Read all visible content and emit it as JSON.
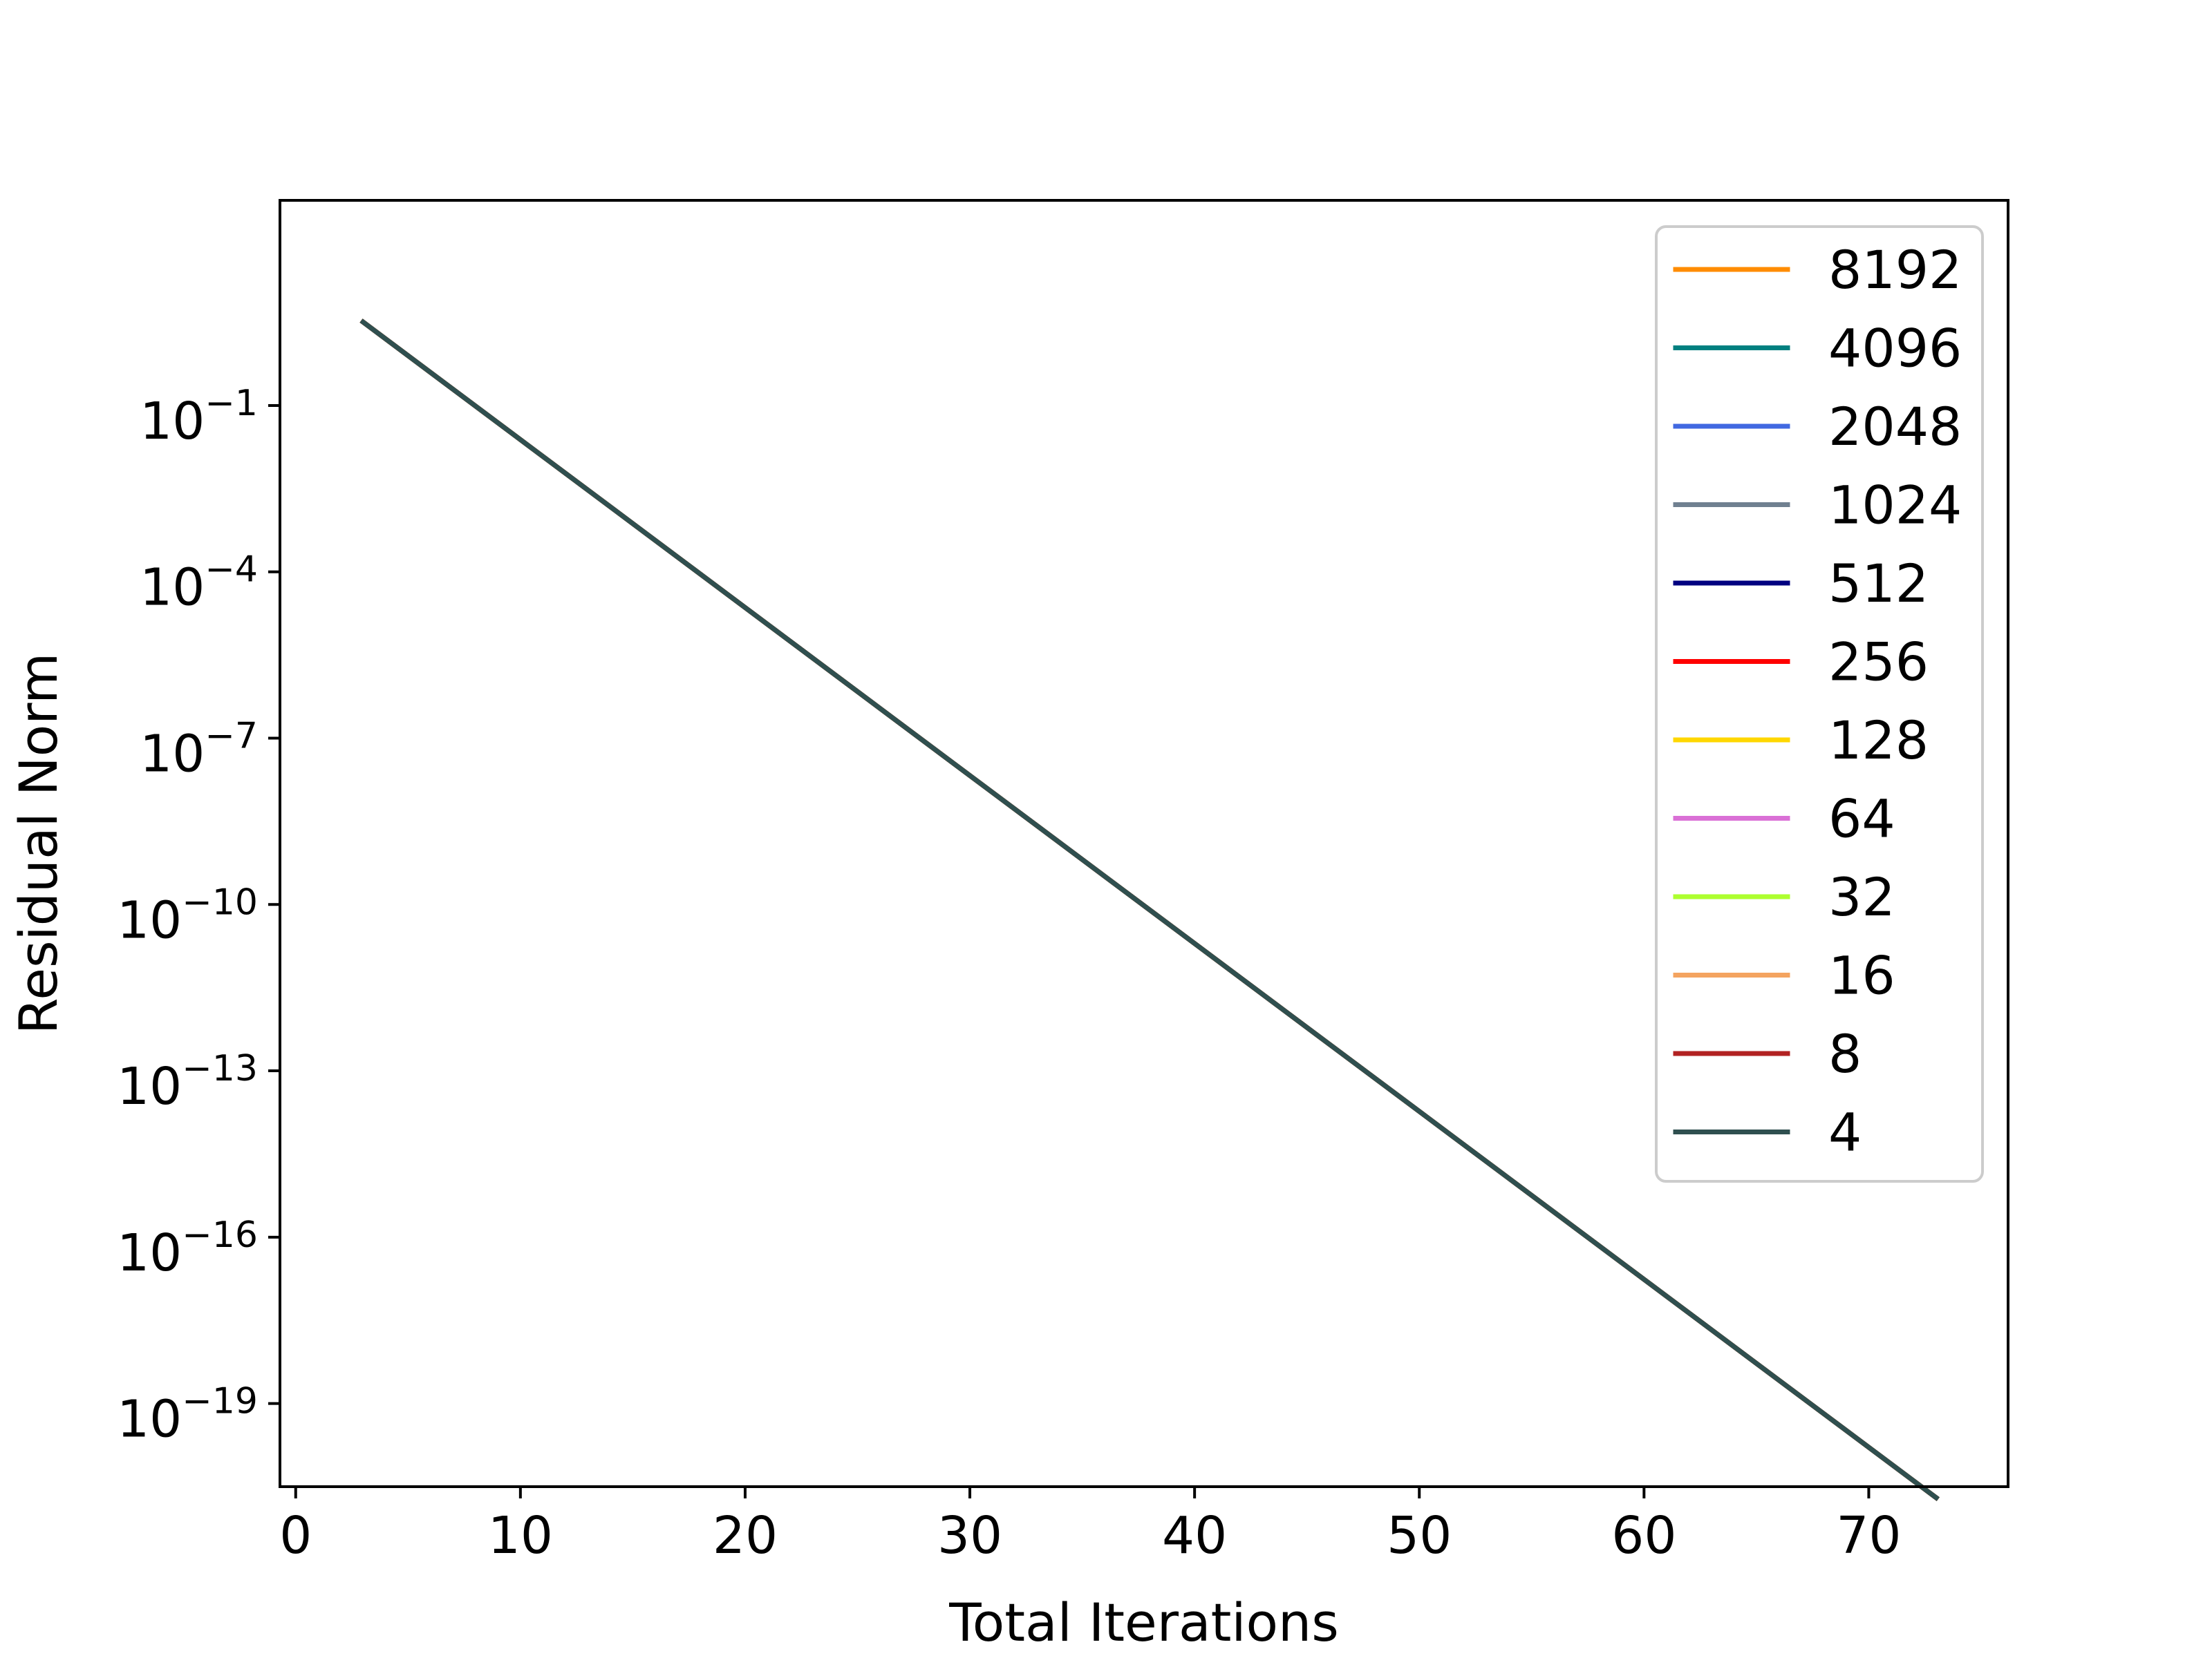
{
  "chart_data": {
    "type": "line",
    "title": "",
    "xlabel": "Total Iterations",
    "ylabel": "Residual Norm",
    "xlim": [
      -0.7,
      76.2
    ],
    "ylim_log10": [
      -20.5,
      2.7
    ],
    "yscale": "log",
    "grid": false,
    "legend_position": "top-right",
    "x_ticks": [
      {
        "value": 0,
        "label": "0"
      },
      {
        "value": 10,
        "label": "10"
      },
      {
        "value": 20,
        "label": "20"
      },
      {
        "value": 30,
        "label": "30"
      },
      {
        "value": 40,
        "label": "40"
      },
      {
        "value": 50,
        "label": "50"
      },
      {
        "value": 60,
        "label": "60"
      },
      {
        "value": 70,
        "label": "70"
      }
    ],
    "y_ticks": [
      {
        "exp": -1,
        "base": "10",
        "sup": "−1"
      },
      {
        "exp": -4,
        "base": "10",
        "sup": "−4"
      },
      {
        "exp": -7,
        "base": "10",
        "sup": "−7"
      },
      {
        "exp": -10,
        "base": "10",
        "sup": "−10"
      },
      {
        "exp": -13,
        "base": "10",
        "sup": "−13"
      },
      {
        "exp": -16,
        "base": "10",
        "sup": "−16"
      },
      {
        "exp": -19,
        "base": "10",
        "sup": "−19"
      }
    ],
    "series": [
      {
        "name": "8192",
        "color": "#ff8c00",
        "x": [
          3,
          73
        ],
        "y": [
          3.2,
          2e-21
        ]
      },
      {
        "name": "4096",
        "color": "#008080",
        "x": [
          3,
          73
        ],
        "y": [
          3.2,
          2e-21
        ]
      },
      {
        "name": "2048",
        "color": "#4169e1",
        "x": [
          3,
          73
        ],
        "y": [
          3.2,
          2e-21
        ]
      },
      {
        "name": "1024",
        "color": "#708090",
        "x": [
          3,
          73
        ],
        "y": [
          3.2,
          2e-21
        ]
      },
      {
        "name": "512",
        "color": "#000080",
        "x": [
          3,
          73
        ],
        "y": [
          3.2,
          2e-21
        ]
      },
      {
        "name": "256",
        "color": "#ff0000",
        "x": [
          3,
          73
        ],
        "y": [
          3.2,
          2e-21
        ]
      },
      {
        "name": "128",
        "color": "#ffd700",
        "x": [
          3,
          73
        ],
        "y": [
          3.2,
          2e-21
        ]
      },
      {
        "name": "64",
        "color": "#da70d6",
        "x": [
          3,
          73
        ],
        "y": [
          3.2,
          2e-21
        ]
      },
      {
        "name": "32",
        "color": "#adff2f",
        "x": [
          3,
          73
        ],
        "y": [
          3.2,
          2e-21
        ]
      },
      {
        "name": "16",
        "color": "#f4a460",
        "x": [
          3,
          73
        ],
        "y": [
          3.2,
          2e-21
        ]
      },
      {
        "name": "8",
        "color": "#b22222",
        "x": [
          3,
          73
        ],
        "y": [
          3.2,
          2e-21
        ]
      },
      {
        "name": "4",
        "color": "#2f4f4f",
        "x": [
          3,
          73
        ],
        "y": [
          3.2,
          2e-21
        ]
      }
    ]
  }
}
